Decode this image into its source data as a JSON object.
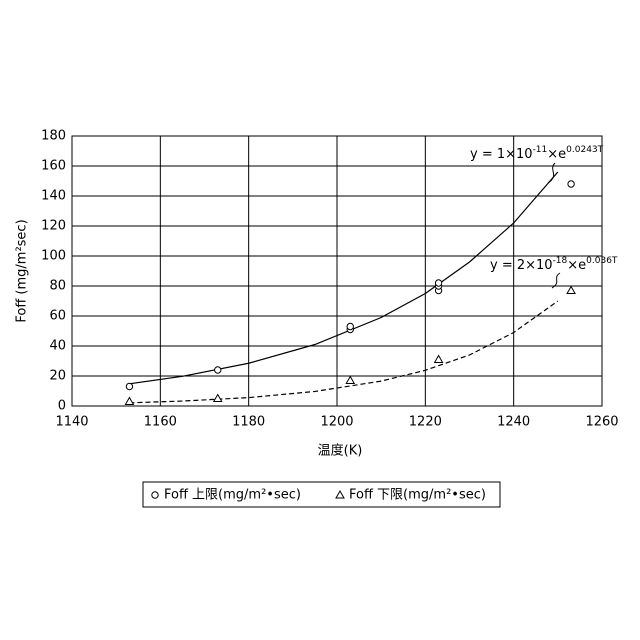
{
  "chart_data": {
    "type": "scatter",
    "xlabel": "温度(K)",
    "ylabel": "Foff (mg/m²sec)",
    "xlim": [
      1140,
      1260
    ],
    "xticks": [
      1140,
      1160,
      1180,
      1200,
      1220,
      1240,
      1260
    ],
    "ylim": [
      0,
      180
    ],
    "yticks": [
      0,
      20,
      40,
      60,
      80,
      100,
      120,
      140,
      160,
      180
    ],
    "grid": true,
    "series": [
      {
        "name": "Foff 上限(mg/m²•sec)",
        "marker": "circle",
        "color": "#000000",
        "x": [
          1153,
          1173,
          1203,
          1203,
          1223,
          1223,
          1223,
          1253
        ],
        "values": [
          13,
          24,
          51,
          53,
          77,
          80,
          82,
          148
        ]
      },
      {
        "name": "Foff 下限(mg/m²•sec)",
        "marker": "triangle",
        "color": "#000000",
        "x": [
          1153,
          1173,
          1203,
          1223,
          1253
        ],
        "values": [
          3,
          5,
          17,
          31,
          77
        ]
      }
    ],
    "fits": [
      {
        "dashed": false,
        "label": [
          "y = 1×10",
          "-11",
          "×e",
          "0.0243T"
        ],
        "x": [
          1153,
          1165,
          1180,
          1195,
          1210,
          1220,
          1230,
          1240,
          1250
        ],
        "values": [
          14.8,
          19.8,
          28.5,
          41,
          59,
          75,
          96,
          122,
          156
        ]
      },
      {
        "dashed": true,
        "label": [
          "y = 2×10",
          "-18",
          "×e",
          "0.036T"
        ],
        "x": [
          1153,
          1165,
          1180,
          1195,
          1210,
          1220,
          1230,
          1240,
          1250
        ],
        "values": [
          2.1,
          3.3,
          5.6,
          9.7,
          16.6,
          23.8,
          34,
          49,
          70
        ]
      }
    ]
  }
}
